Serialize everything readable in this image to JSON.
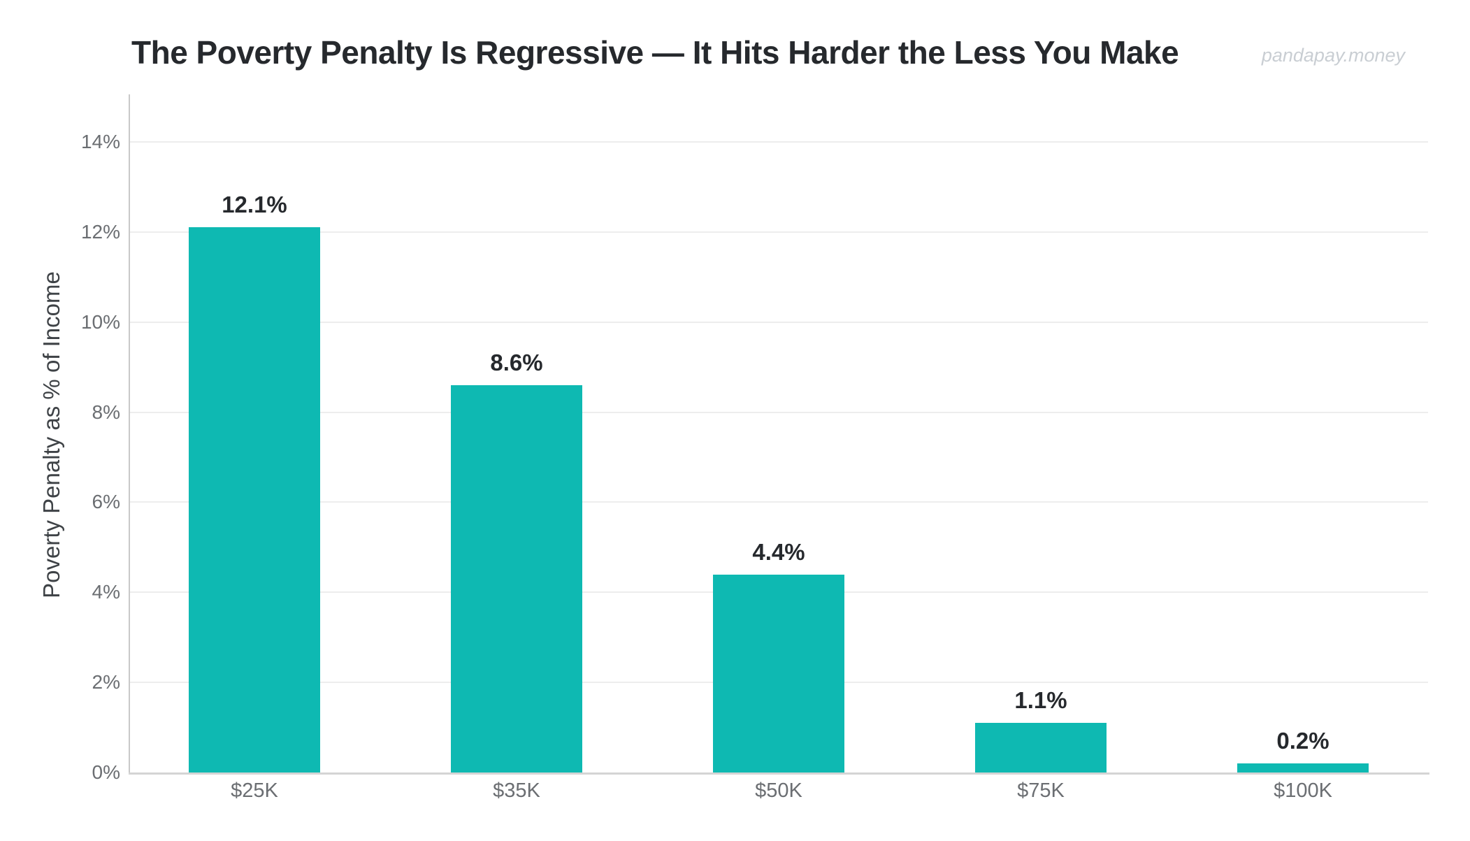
{
  "page": {
    "watermark": "pandapay.money"
  },
  "colors": {
    "bar": "#0eb9b2",
    "title_text": "#26292d",
    "data_label_text": "#26292d",
    "tick_label_text": "#6b6e72",
    "axis_title_text": "#3e4246",
    "gridline": "#ededed",
    "y_axis_line": "#c9c9c9",
    "x_axis_line": "#d4d4d4",
    "watermark_text": "#c9ced3",
    "background": "#ffffff"
  },
  "chart_data": {
    "type": "bar",
    "title": "The Poverty Penalty Is Regressive — It Hits Harder the Less You Make",
    "categories": [
      "$25K",
      "$35K",
      "$50K",
      "$75K",
      "$100K"
    ],
    "values": [
      12.1,
      8.6,
      4.4,
      1.1,
      0.2
    ],
    "data_labels": [
      "12.1%",
      "8.6%",
      "4.4%",
      "1.1%",
      "0.2%"
    ],
    "xlabel": "",
    "ylabel": "Poverty Penalty as % of Income",
    "ylim": [
      0,
      14
    ],
    "ytick_step": 2,
    "ytick_values": [
      0,
      2,
      4,
      6,
      8,
      10,
      12,
      14
    ],
    "ytick_labels": [
      "0%",
      "2%",
      "4%",
      "6%",
      "8%",
      "10%",
      "12%",
      "14%"
    ],
    "grid": "horizontal",
    "legend": false,
    "bar_color": "#0eb9b2"
  }
}
